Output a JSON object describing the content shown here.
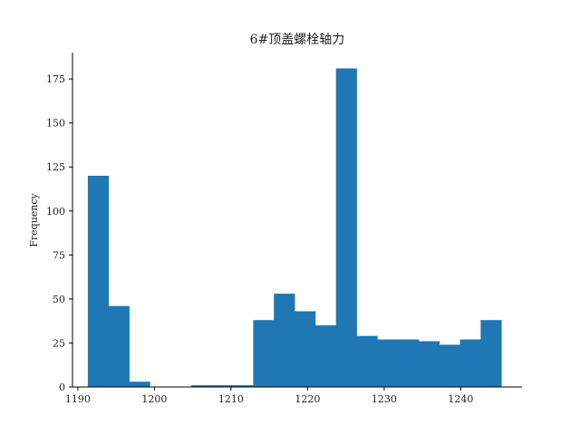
{
  "chart_data": {
    "type": "histogram",
    "title": "6#顶盖螺栓轴力",
    "xlabel": "",
    "ylabel": "Frequency",
    "xlim": [
      1189.3,
      1248.0
    ],
    "ylim": [
      0,
      190
    ],
    "xticks": [
      1190,
      1200,
      1210,
      1220,
      1230,
      1240
    ],
    "yticks": [
      0,
      25,
      50,
      75,
      100,
      125,
      150,
      175
    ],
    "bin_edges": [
      1191.3,
      1194.0,
      1196.7,
      1199.4,
      1202.1,
      1204.8,
      1207.5,
      1210.2,
      1212.9,
      1215.6,
      1218.3,
      1221.0,
      1223.7,
      1226.4,
      1229.1,
      1231.8,
      1234.5,
      1237.2,
      1239.9,
      1242.6,
      1245.3
    ],
    "values": [
      120,
      46,
      3,
      0,
      0,
      1,
      1,
      1,
      38,
      53,
      43,
      35,
      181,
      29,
      27,
      27,
      26,
      24,
      27,
      38
    ],
    "bar_color": "#1f77b4",
    "grid": false
  }
}
